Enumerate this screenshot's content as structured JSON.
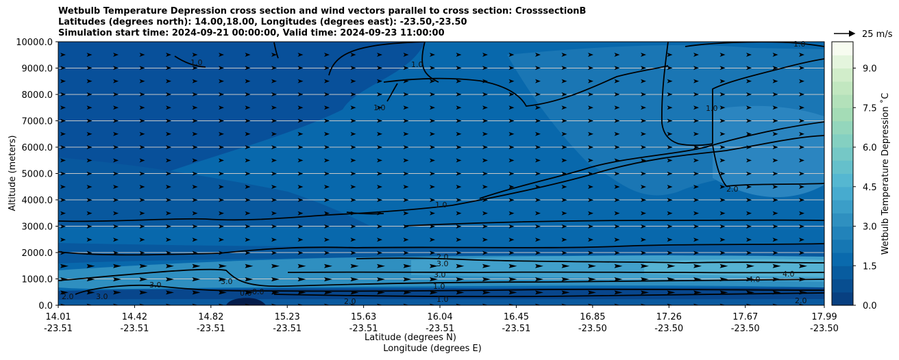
{
  "title": {
    "line1": "Wetbulb Temperature Depression cross section and wind vectors parallel to cross section: CrosssectionB",
    "line2": "Latitudes (degrees north): 14.00,18.00, Longitudes (degrees east): -23.50,-23.50",
    "line3": "Simulation start time: 2024-09-21 00:00:00, Valid time: 2024-09-23 11:00:00"
  },
  "wind_key": {
    "label": "25 m/s"
  },
  "colorbar": {
    "label": "Wetbulb Temperature Depression ˚C"
  },
  "chart_data": {
    "type": "heatmap",
    "subtype": "cross-section filled contour with wind vectors",
    "xlabel": "Latitude (degrees N)",
    "xlabel2": "Longitude (degrees E)",
    "ylabel": "Altitude (meters)",
    "ylim": [
      0,
      10000
    ],
    "yticks": [
      "0.0",
      "1000.0",
      "2000.0",
      "3000.0",
      "4000.0",
      "5000.0",
      "6000.0",
      "7000.0",
      "8000.0",
      "9000.0",
      "10000.0"
    ],
    "xticks": [
      {
        "lat": "14.01",
        "lon": "-23.51"
      },
      {
        "lat": "14.42",
        "lon": "-23.51"
      },
      {
        "lat": "14.82",
        "lon": "-23.51"
      },
      {
        "lat": "15.23",
        "lon": "-23.51"
      },
      {
        "lat": "15.63",
        "lon": "-23.51"
      },
      {
        "lat": "16.04",
        "lon": "-23.51"
      },
      {
        "lat": "16.45",
        "lon": "-23.51"
      },
      {
        "lat": "16.85",
        "lon": "-23.50"
      },
      {
        "lat": "17.26",
        "lon": "-23.50"
      },
      {
        "lat": "17.67",
        "lon": "-23.50"
      },
      {
        "lat": "17.99",
        "lon": "-23.50"
      }
    ],
    "colorbar_range": [
      0,
      10
    ],
    "colorbar_ticks": [
      "0.0",
      "1.5",
      "3.0",
      "4.5",
      "6.0",
      "7.5",
      "9.0"
    ],
    "contour_labels": [
      "1.0",
      "2.0",
      "3.0",
      "4.0",
      "0.0"
    ],
    "grid": "horizontal",
    "colormap": "GnBu (reversed, dark blue = low)",
    "colors": {
      "low": "#08468c",
      "mid": "#2f8fc0",
      "high": "#f7fcf0"
    }
  }
}
